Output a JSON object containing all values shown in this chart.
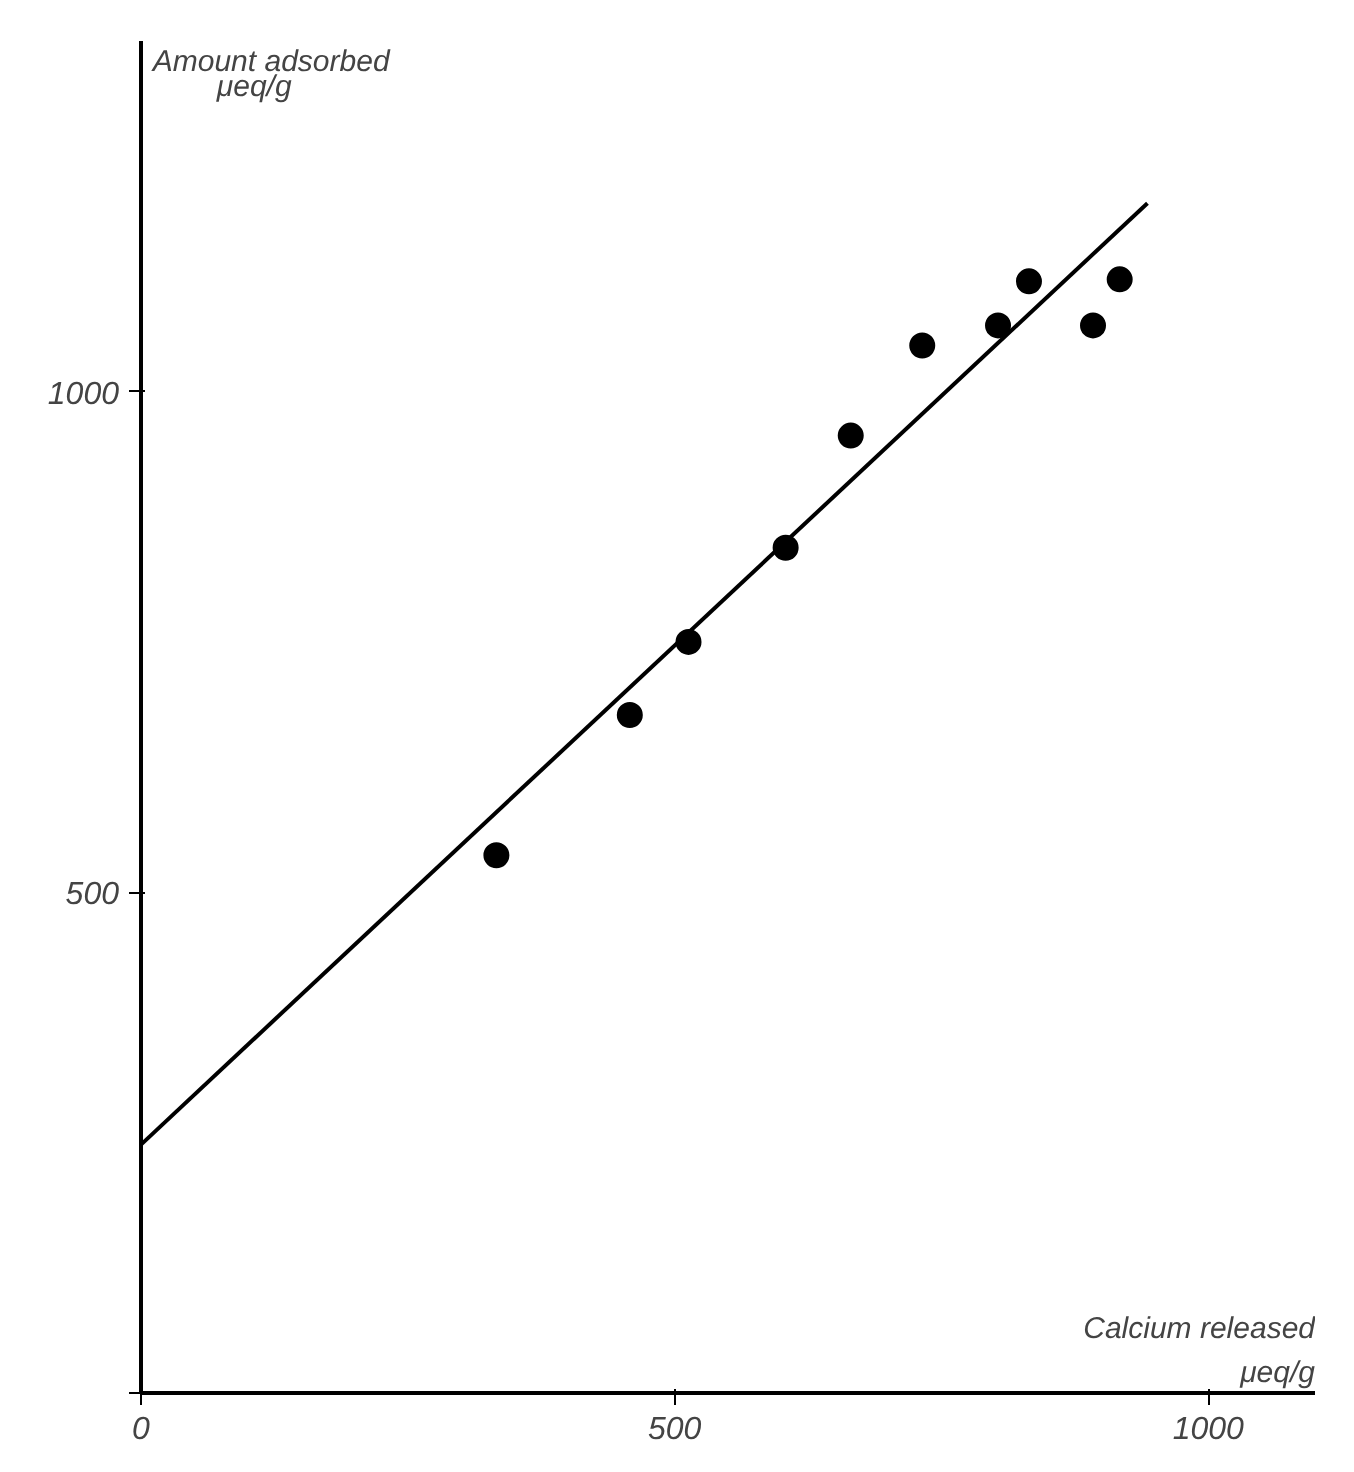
{
  "chart_data": {
    "type": "scatter",
    "xlabel": "Calcium released\nμeq/g",
    "ylabel": "Amount adsorbed\nμeq/g",
    "xlim": [
      0,
      1100
    ],
    "ylim": [
      0,
      1350
    ],
    "xticks": [
      0,
      500,
      1000
    ],
    "yticks": [
      {
        "value": 0,
        "label": null
      },
      500,
      1000
    ],
    "grid": false,
    "series": [
      {
        "color": "#000000",
        "marker": "circle",
        "x": [
          333,
          458,
          513,
          604,
          665,
          732,
          803,
          832,
          892,
          917
        ],
        "values": [
          537,
          677,
          750,
          844,
          956,
          1046,
          1066,
          1110,
          1066,
          1112
        ]
      },
      {
        "type": "line",
        "color": "#000000",
        "line_style": "solid",
        "marker": "none",
        "x": [
          0,
          943
        ],
        "values": [
          248,
          1188
        ]
      }
    ]
  }
}
